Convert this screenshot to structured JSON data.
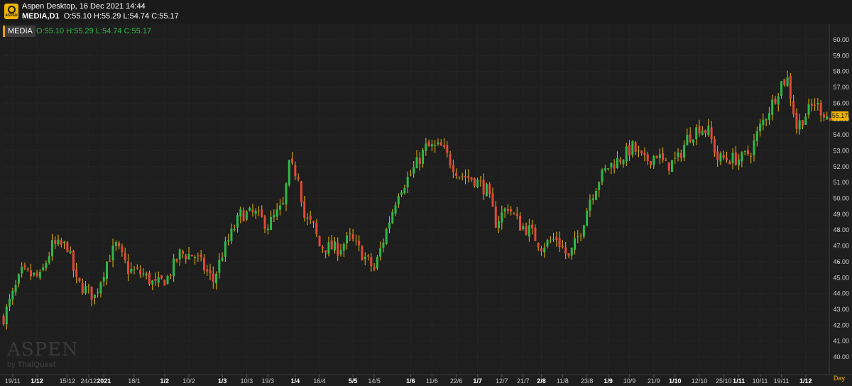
{
  "app": {
    "logo_text": "ASPEN",
    "title": "Aspen Desktop, 16 Dec 2021 14:44",
    "symbol_period": "MEDIA,D1",
    "ohlc": "O:55.10 H:55.29 L:54.74 C:55.17"
  },
  "toolbar": {
    "symbol_tab": "MEDIA",
    "ohlc_green": "O:55.10 H:55.29 L:54.74 C:55.17"
  },
  "watermark": {
    "brand": "ASPEN",
    "by": "by",
    "vendor": "ThaiQuest"
  },
  "last_price": "55.17",
  "period_label": "Day",
  "colors": {
    "up": "#2fb84b",
    "down": "#e2483a",
    "background": "#1e1e1e",
    "grid": "#2c2c2c",
    "accent": "#f0b400"
  },
  "chart_data": {
    "type": "candlestick",
    "title": "",
    "ylim": [
      40,
      60
    ],
    "yticks": [
      "40.00",
      "41.00",
      "42.00",
      "43.00",
      "44.00",
      "45.00",
      "46.00",
      "47.00",
      "48.00",
      "49.00",
      "50.00",
      "51.00",
      "52.00",
      "53.00",
      "54.00",
      "55.00",
      "56.00",
      "57.00",
      "58.00",
      "59.00",
      "60.00"
    ],
    "xticks": [
      {
        "label": "19/11",
        "i": 3,
        "bold": false
      },
      {
        "label": "1/12",
        "i": 11,
        "bold": true
      },
      {
        "label": "15/12",
        "i": 21,
        "bold": false
      },
      {
        "label": "24/12",
        "i": 28,
        "bold": false
      },
      {
        "label": "2021",
        "i": 33,
        "bold": true
      },
      {
        "label": "18/1",
        "i": 43,
        "bold": false
      },
      {
        "label": "1/2",
        "i": 53,
        "bold": true
      },
      {
        "label": "10/2",
        "i": 61,
        "bold": false
      },
      {
        "label": "1/3",
        "i": 72,
        "bold": true
      },
      {
        "label": "10/3",
        "i": 80,
        "bold": false
      },
      {
        "label": "19/3",
        "i": 87,
        "bold": false
      },
      {
        "label": "1/4",
        "i": 96,
        "bold": true
      },
      {
        "label": "16/4",
        "i": 104,
        "bold": false
      },
      {
        "label": "5/5",
        "i": 115,
        "bold": true
      },
      {
        "label": "14/5",
        "i": 122,
        "bold": false
      },
      {
        "label": "1/6",
        "i": 134,
        "bold": true
      },
      {
        "label": "11/6",
        "i": 141,
        "bold": false
      },
      {
        "label": "22/6",
        "i": 149,
        "bold": false
      },
      {
        "label": "1/7",
        "i": 156,
        "bold": true
      },
      {
        "label": "12/7",
        "i": 164,
        "bold": false
      },
      {
        "label": "21/7",
        "i": 171,
        "bold": false
      },
      {
        "label": "2/8",
        "i": 177,
        "bold": true
      },
      {
        "label": "11/8",
        "i": 184,
        "bold": false
      },
      {
        "label": "23/8",
        "i": 192,
        "bold": false
      },
      {
        "label": "1/9",
        "i": 199,
        "bold": true
      },
      {
        "label": "10/9",
        "i": 206,
        "bold": false
      },
      {
        "label": "21/9",
        "i": 214,
        "bold": false
      },
      {
        "label": "1/10",
        "i": 221,
        "bold": true
      },
      {
        "label": "12/10",
        "i": 229,
        "bold": false
      },
      {
        "label": "25/10",
        "i": 237,
        "bold": false
      },
      {
        "label": "1/11",
        "i": 242,
        "bold": true
      },
      {
        "label": "10/11",
        "i": 249,
        "bold": false
      },
      {
        "label": "19/11",
        "i": 256,
        "bold": false
      },
      {
        "label": "1/12",
        "i": 264,
        "bold": true
      }
    ],
    "keypoints": [
      [
        0,
        42.5
      ],
      [
        6,
        45.3
      ],
      [
        12,
        45.0
      ],
      [
        16,
        47.0
      ],
      [
        21,
        47.0
      ],
      [
        24,
        44.7
      ],
      [
        30,
        43.8
      ],
      [
        34,
        46.0
      ],
      [
        37,
        47.0
      ],
      [
        41,
        45.5
      ],
      [
        46,
        45.2
      ],
      [
        50,
        44.5
      ],
      [
        54,
        45.0
      ],
      [
        58,
        46.5
      ],
      [
        63,
        46.4
      ],
      [
        69,
        44.8
      ],
      [
        72,
        46.5
      ],
      [
        78,
        49.0
      ],
      [
        83,
        49.0
      ],
      [
        87,
        48.3
      ],
      [
        92,
        49.5
      ],
      [
        94,
        52.0
      ],
      [
        97,
        51.5
      ],
      [
        99,
        48.8
      ],
      [
        102,
        48.2
      ],
      [
        104,
        47.0
      ],
      [
        110,
        46.8
      ],
      [
        114,
        47.5
      ],
      [
        118,
        46.5
      ],
      [
        122,
        45.5
      ],
      [
        126,
        48.0
      ],
      [
        130,
        50.5
      ],
      [
        134,
        51.5
      ],
      [
        139,
        53.2
      ],
      [
        144,
        53.2
      ],
      [
        150,
        51.5
      ],
      [
        155,
        51.2
      ],
      [
        159,
        50.5
      ],
      [
        162,
        48.5
      ],
      [
        166,
        49.5
      ],
      [
        170,
        48.3
      ],
      [
        173,
        48.0
      ],
      [
        177,
        47.0
      ],
      [
        182,
        47.5
      ],
      [
        186,
        46.2
      ],
      [
        190,
        48.0
      ],
      [
        193,
        50.0
      ],
      [
        196,
        51.2
      ],
      [
        199,
        52.0
      ],
      [
        203,
        52.5
      ],
      [
        207,
        53.2
      ],
      [
        211,
        52.3
      ],
      [
        215,
        52.8
      ],
      [
        218,
        52.0
      ],
      [
        222,
        52.5
      ],
      [
        225,
        53.8
      ],
      [
        229,
        54.5
      ],
      [
        232,
        54.2
      ],
      [
        235,
        52.5
      ],
      [
        238,
        52.5
      ],
      [
        241,
        52.5
      ],
      [
        243,
        52.5
      ],
      [
        246,
        53.0
      ],
      [
        249,
        54.5
      ],
      [
        253,
        56.0
      ],
      [
        256,
        57.3
      ],
      [
        258,
        57.5
      ],
      [
        261,
        54.5
      ],
      [
        264,
        55.3
      ],
      [
        267,
        56.0
      ],
      [
        272,
        55.0
      ]
    ]
  }
}
